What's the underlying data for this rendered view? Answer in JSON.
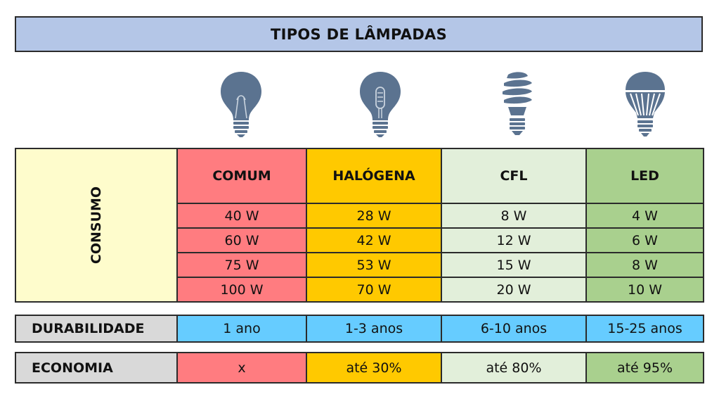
{
  "title": "TIPOS DE LÂMPADAS",
  "icons": [
    "incandescent-bulb-icon",
    "halogen-bulb-icon",
    "cfl-bulb-icon",
    "led-bulb-icon"
  ],
  "colors": {
    "title_bg": "#b4c6e7",
    "comum": "#ff7c80",
    "halogena": "#ffc900",
    "cfl": "#e2efda",
    "led": "#a9d08e",
    "durabilidade": "#66ccff",
    "consumo_label": "#fefccc",
    "row_label": "#d9d9d9",
    "icon": "#5b7390"
  },
  "consumo": {
    "label": "CONSUMO",
    "headers": [
      "COMUM",
      "HALÓGENA",
      "CFL",
      "LED"
    ],
    "rows": [
      [
        "40 W",
        "28 W",
        "8 W",
        "4 W"
      ],
      [
        "60 W",
        "42 W",
        "12 W",
        "6 W"
      ],
      [
        "75 W",
        "53 W",
        "15 W",
        "8 W"
      ],
      [
        "100 W",
        "70 W",
        "20 W",
        "10 W"
      ]
    ]
  },
  "durabilidade": {
    "label": "DURABILIDADE",
    "values": [
      "1 ano",
      "1-3 anos",
      "6-10 anos",
      "15-25 anos"
    ]
  },
  "economia": {
    "label": "ECONOMIA",
    "values": [
      "x",
      "até 30%",
      "até 80%",
      "até 95%"
    ]
  }
}
